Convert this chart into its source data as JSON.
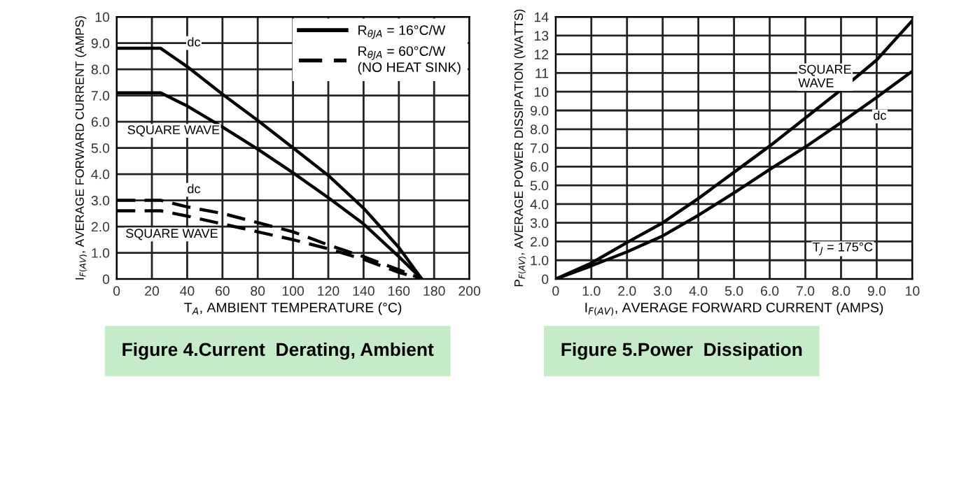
{
  "chart_data": [
    {
      "type": "line",
      "xlabel": "T$_{A}$, AMBIENT TEMPERATURE (°C)",
      "ylabel": "I$_{F(AV)}$, AVERAGE FORWARD CURRENT (AMPS)",
      "xlim": [
        0,
        200
      ],
      "ylim": [
        0,
        10
      ],
      "xticks": [
        0,
        20,
        40,
        60,
        80,
        100,
        120,
        140,
        160,
        180,
        200
      ],
      "yticks": [
        0,
        {
          "value": 1,
          "label": "1.0"
        },
        {
          "value": 2,
          "label": "2.0"
        },
        {
          "value": 3,
          "label": "3.0"
        },
        {
          "value": 4,
          "label": "4.0"
        },
        {
          "value": 5,
          "label": "5.0"
        },
        {
          "value": 6,
          "label": "6.0"
        },
        {
          "value": 7,
          "label": "7.0"
        },
        {
          "value": 8,
          "label": "8.0"
        },
        {
          "value": 9,
          "label": "9.0"
        },
        10
      ],
      "grid": true,
      "legend": "top right",
      "marker": "none",
      "series": [
        {
          "name": "R$_{θJA}$ = 16°C/W",
          "color": "#000000",
          "line_style": "solid",
          "x": [
            0,
            25,
            40,
            60,
            80,
            100,
            120,
            140,
            160,
            173
          ],
          "values": [
            8.8,
            8.8,
            8.1,
            7.05,
            6.05,
            5.0,
            3.95,
            2.7,
            1.2,
            0
          ]
        },
        {
          "color": "#000000",
          "line_style": "solid",
          "x": [
            0,
            25,
            40,
            60,
            80,
            100,
            120,
            140,
            160,
            173
          ],
          "values": [
            7.1,
            7.1,
            6.6,
            5.8,
            4.95,
            4.05,
            3.1,
            2.1,
            0.85,
            0
          ]
        },
        {
          "name": "R$_{θJA}$ = 60°C/W\n(NO HEAT SINK)",
          "color": "#000000",
          "line_style": "dashed",
          "x": [
            0,
            25,
            40,
            60,
            80,
            100,
            120,
            140,
            160,
            173
          ],
          "values": [
            3.0,
            3.0,
            2.75,
            2.5,
            2.15,
            1.8,
            1.3,
            0.85,
            0.35,
            0
          ]
        },
        {
          "color": "#000000",
          "line_style": "dashed",
          "x": [
            0,
            25,
            40,
            60,
            80,
            100,
            120,
            140,
            160,
            173
          ],
          "values": [
            2.6,
            2.6,
            2.4,
            2.1,
            1.8,
            1.5,
            1.15,
            0.75,
            0.25,
            0
          ]
        }
      ],
      "annotations": [
        "dc",
        "SQUARE WAVE",
        "dc",
        "SQUARE WAVE",
        "Figure 4.Current  Derating, Ambient"
      ]
    },
    {
      "type": "line",
      "xlabel": "I$_{F(AV)}$, AVERAGE FORWARD CURRENT (AMPS)",
      "ylabel": "P$_{F(AV)}$, AVERAGE POWER DISSIPATION (WATTS)",
      "xlim": [
        0,
        10
      ],
      "ylim": [
        0,
        14
      ],
      "xticks": [
        0,
        {
          "value": 1,
          "label": "1.0"
        },
        {
          "value": 2,
          "label": "2.0"
        },
        {
          "value": 3,
          "label": "3.0"
        },
        {
          "value": 4,
          "label": "4.0"
        },
        {
          "value": 5,
          "label": "5.0"
        },
        {
          "value": 6,
          "label": "6.0"
        },
        {
          "value": 7,
          "label": "7.0"
        },
        {
          "value": 8,
          "label": "8.0"
        },
        {
          "value": 9,
          "label": "9.0"
        },
        10
      ],
      "yticks": [
        0,
        {
          "value": 1,
          "label": "1.0"
        },
        {
          "value": 2,
          "label": "2.0"
        },
        {
          "value": 3,
          "label": "3.0"
        },
        {
          "value": 4,
          "label": "4.0"
        },
        {
          "value": 5,
          "label": "5.0"
        },
        {
          "value": 6,
          "label": "6.0"
        },
        {
          "value": 7,
          "label": "7.0"
        },
        {
          "value": 8,
          "label": "8.0"
        },
        {
          "value": 9,
          "label": "9.0"
        },
        10,
        11,
        12,
        13,
        14
      ],
      "grid": true,
      "marker": "none",
      "series": [
        {
          "color": "#000000",
          "line_style": "solid",
          "x": [
            0,
            1,
            2,
            3,
            4,
            5,
            6,
            7,
            8,
            9,
            10
          ],
          "values": [
            0,
            0.85,
            1.95,
            3.0,
            4.3,
            5.7,
            7.1,
            8.6,
            10.1,
            11.7,
            13.8
          ]
        },
        {
          "color": "#000000",
          "line_style": "solid",
          "x": [
            0,
            1,
            2,
            3,
            4,
            5,
            6,
            7,
            8,
            9,
            10
          ],
          "values": [
            0,
            0.7,
            1.45,
            2.3,
            3.4,
            4.6,
            5.85,
            7.05,
            8.35,
            9.7,
            11.1
          ]
        }
      ],
      "annotations": [
        "SQUARE\nWAVE",
        "dc",
        "T$_{J}$ = 175°C",
        "Figure 5.Power  Dissipation"
      ]
    }
  ]
}
